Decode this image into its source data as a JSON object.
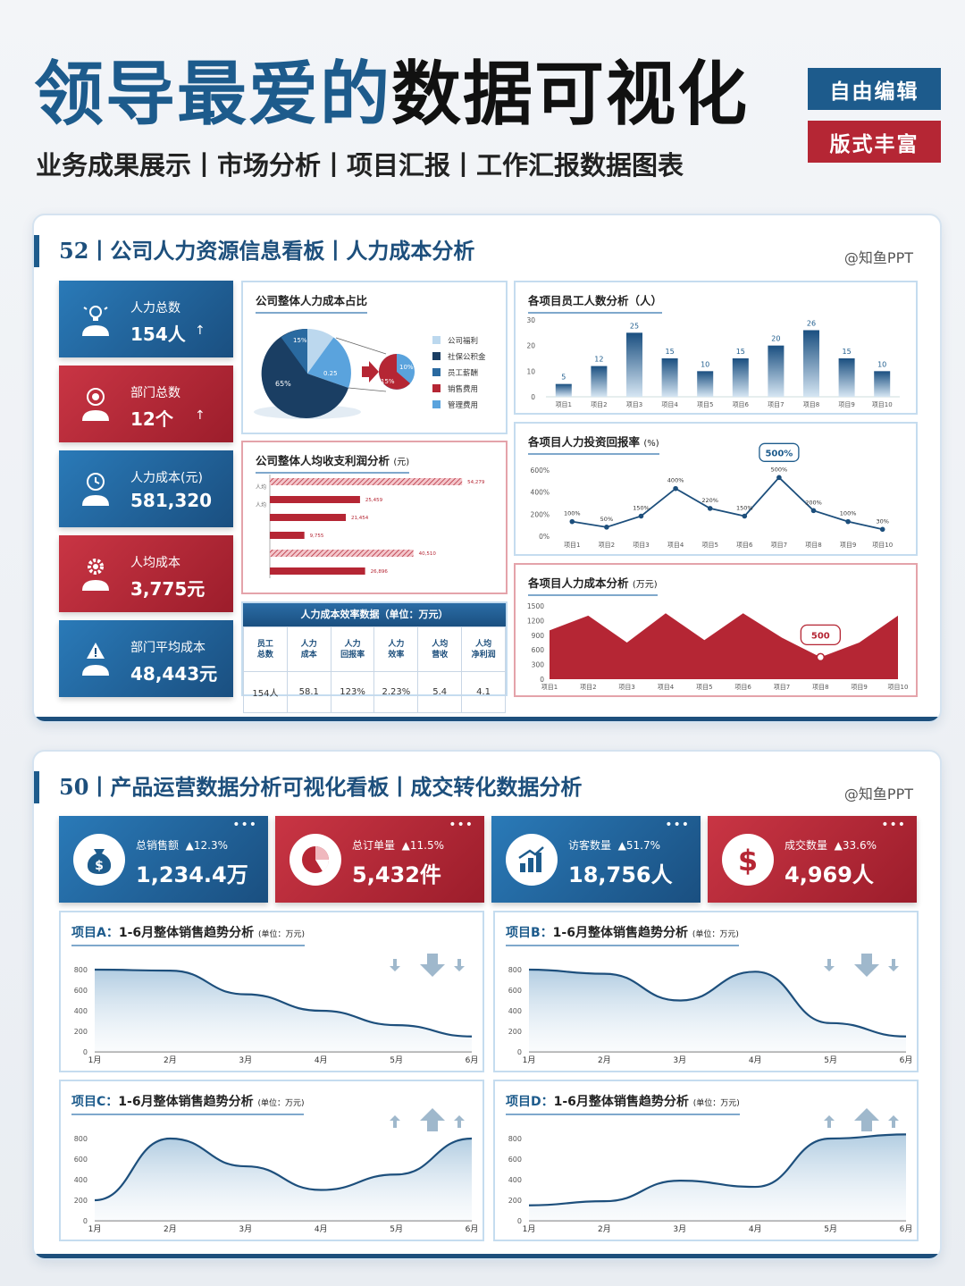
{
  "header": {
    "title_blue": "领导最爱的",
    "title_dark": "数据可视化",
    "subtitle": "业务成果展示丨市场分析丨项目汇报丨工作汇报数据图表",
    "tag1": "自由编辑",
    "tag2": "版式丰富"
  },
  "panel1": {
    "title": "52丨公司人力资源信息看板丨人力成本分析",
    "credit": "@知鱼PPT",
    "kpis": [
      {
        "label": "人力总数",
        "value": "154人",
        "arrow": "↑",
        "icon": "lightbulb-person-icon"
      },
      {
        "label": "部门总数",
        "value": "12个",
        "arrow": "↑",
        "icon": "target-person-icon"
      },
      {
        "label": "人力成本(元)",
        "value": "581,320",
        "icon": "clock-person-icon"
      },
      {
        "label": "人均成本",
        "value": "3,775元",
        "icon": "gear-person-icon"
      },
      {
        "label": "部门平均成本",
        "value": "48,443元",
        "icon": "alert-person-icon"
      }
    ],
    "pie": {
      "title": "公司整体人力成本占比",
      "labels": [
        "15%",
        "65%",
        "0.25",
        "10%",
        "15%"
      ],
      "legend": [
        "公司福利",
        "社保公积金",
        "员工薪酬",
        "销售费用",
        "管理费用"
      ],
      "colors": {
        "light": "#bcd8ee",
        "navy": "#1a3e63",
        "mid": "#2a6aa0",
        "red": "#b52634",
        "sky": "#5aa3dd"
      }
    },
    "hbar": {
      "title": "公司整体人均收支利润分析",
      "unit": "(元)",
      "ylabel": "人均",
      "values": [
        54279,
        25459,
        21454,
        9755,
        40510,
        26896
      ],
      "labels": [
        "54,279",
        "25,459",
        "21,454",
        "9,755",
        "40,510",
        "26,896"
      ],
      "hatched": [
        true,
        false,
        false,
        false,
        true,
        false
      ]
    },
    "table": {
      "title": "人力成本效率数据（单位：万元）",
      "headers": [
        "员工\n总数",
        "人力\n成本",
        "人力\n回报率",
        "人力\n效率",
        "人均\n营收",
        "人均\n净利润"
      ],
      "values": [
        "154人",
        "58.1",
        "123%",
        "2.23%",
        "5.4",
        "4.1"
      ]
    },
    "staff_chart": {
      "title": "各项目员工人数分析（人）",
      "categories": [
        "项目1",
        "项目2",
        "项目3",
        "项目4",
        "项目5",
        "项目6",
        "项目7",
        "项目8",
        "项目9",
        "项目10"
      ],
      "values": [
        5,
        12,
        25,
        15,
        10,
        15,
        20,
        26,
        15,
        10
      ],
      "yticks": [
        "0",
        "10",
        "20",
        "30"
      ]
    },
    "roi_chart": {
      "title": "各项目人力投资回报率",
      "unit": "(%)",
      "categories": [
        "项目1",
        "项目2",
        "项目3",
        "项目4",
        "项目5",
        "项目6",
        "项目7",
        "项目8",
        "项目9",
        "项目10"
      ],
      "values": [
        100,
        50,
        150,
        400,
        220,
        150,
        500,
        200,
        100,
        30
      ],
      "labels": [
        "100%",
        "50%",
        "150%",
        "400%",
        "220%",
        "150%",
        "500%",
        "200%",
        "100%",
        "30%"
      ],
      "yticks": [
        "0%",
        "200%",
        "400%",
        "600%"
      ],
      "callout": "500%"
    },
    "cost_chart": {
      "title": "各项目人力成本分析",
      "unit": "(万元)",
      "categories": [
        "项目1",
        "项目2",
        "项目3",
        "项目4",
        "项目5",
        "项目6",
        "项目7",
        "项目8",
        "项目9",
        "项目10"
      ],
      "values": [
        1000,
        1300,
        750,
        1350,
        800,
        1350,
        850,
        450,
        750,
        1300
      ],
      "yticks": [
        "0",
        "300",
        "600",
        "900",
        "1200",
        "1500"
      ],
      "callout": "500"
    }
  },
  "panel2": {
    "title": "50丨产品运营数据分析可视化看板丨成交转化数据分析",
    "credit": "@知鱼PPT",
    "kpis": [
      {
        "label": "总销售额",
        "change": "▲12.3%",
        "value": "1,234.4万",
        "icon": "money-bag-icon"
      },
      {
        "label": "总订单量",
        "change": "▲11.5%",
        "value": "5,432件",
        "icon": "pie-chart-icon"
      },
      {
        "label": "访客数量",
        "change": "▲51.7%",
        "value": "18,756人",
        "icon": "bar-growth-icon"
      },
      {
        "label": "成交数量",
        "change": "▲33.6%",
        "value": "4,969人",
        "icon": "dollar-icon"
      }
    ],
    "dots": "•••",
    "charts": [
      {
        "prefix": "项目A：",
        "title": "1-6月整体销售趋势分析",
        "unit": "(单位：万元)",
        "trend": "down",
        "values": [
          800,
          790,
          560,
          400,
          260,
          150
        ]
      },
      {
        "prefix": "项目B：",
        "title": "1-6月整体销售趋势分析",
        "unit": "(单位：万元)",
        "trend": "down",
        "values": [
          800,
          760,
          500,
          780,
          280,
          150
        ]
      },
      {
        "prefix": "项目C：",
        "title": "1-6月整体销售趋势分析",
        "unit": "(单位：万元)",
        "trend": "up",
        "values": [
          200,
          800,
          530,
          300,
          450,
          800
        ]
      },
      {
        "prefix": "项目D：",
        "title": "1-6月整体销售趋势分析",
        "unit": "(单位：万元)",
        "trend": "up",
        "values": [
          150,
          190,
          390,
          330,
          800,
          840
        ]
      }
    ],
    "months": [
      "1月",
      "2月",
      "3月",
      "4月",
      "5月",
      "6月"
    ],
    "yticks": [
      "0",
      "200",
      "400",
      "600",
      "800"
    ]
  }
}
